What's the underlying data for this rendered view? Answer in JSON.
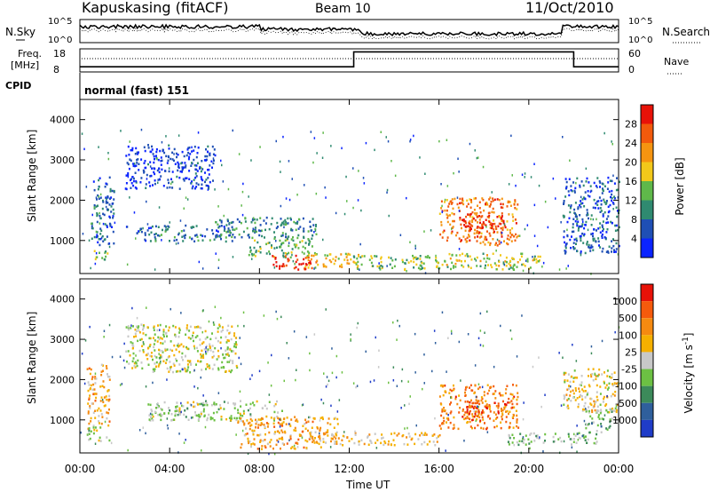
{
  "header": {
    "station": "Kapuskasing (fitACF)",
    "beam": "Beam 10",
    "date": "11/Oct/2010"
  },
  "noise_panel": {
    "left_label": "N.Sky",
    "right_label": "N.Search",
    "left_ticks": [
      "10^5",
      "10^0"
    ],
    "right_ticks": [
      "10^5",
      "10^0"
    ]
  },
  "freq_panel": {
    "left_label_1": "Freq.",
    "left_label_2": "[MHz]",
    "right_label": "Nave",
    "left_ticks": [
      "18",
      "8"
    ],
    "right_ticks": [
      "60",
      "0"
    ]
  },
  "cpid_panel": {
    "label": "CPID",
    "value": "normal (fast) 151"
  },
  "xaxis": {
    "title": "Time UT",
    "ticks": [
      "00:00",
      "04:00",
      "08:00",
      "12:00",
      "16:00",
      "20:00",
      "00:00"
    ]
  },
  "chart_data": [
    {
      "type": "heatmap",
      "name": "power",
      "ylabel": "Slant Range [km]",
      "yticks": [
        "1000",
        "2000",
        "3000",
        "4000"
      ],
      "ylim": [
        180,
        4500
      ],
      "xlim_hours": [
        0,
        24
      ],
      "colorbar": {
        "label": "Power [dB]",
        "ticks": [
          "4",
          "8",
          "12",
          "16",
          "20",
          "24",
          "28"
        ],
        "colors": [
          "#0b24ff",
          "#1f4fb5",
          "#2f8a70",
          "#5fb84a",
          "#f2c81a",
          "#f59410",
          "#f25a0c",
          "#e81208"
        ]
      },
      "regions": [
        {
          "t0": 0.5,
          "t1": 1.2,
          "r0": 500,
          "r1": 800,
          "v": 0.45
        },
        {
          "t0": 0.5,
          "t1": 1.5,
          "r0": 900,
          "r1": 2600,
          "v": 0.2
        },
        {
          "t0": 2.0,
          "t1": 6.0,
          "r0": 2300,
          "r1": 3400,
          "v": 0.12
        },
        {
          "t0": 2.5,
          "t1": 7.0,
          "r0": 1000,
          "r1": 1400,
          "v": 0.25
        },
        {
          "t0": 6.0,
          "t1": 10.5,
          "r0": 1100,
          "r1": 1600,
          "v": 0.3
        },
        {
          "t0": 7.5,
          "t1": 10.5,
          "r0": 600,
          "r1": 1100,
          "v": 0.4
        },
        {
          "t0": 8.5,
          "t1": 10.5,
          "r0": 300,
          "r1": 650,
          "v": 0.95
        },
        {
          "t0": 10.0,
          "t1": 12.5,
          "r0": 350,
          "r1": 700,
          "v": 0.6
        },
        {
          "t0": 12.0,
          "t1": 16.0,
          "r0": 300,
          "r1": 650,
          "v": 0.45
        },
        {
          "t0": 16.0,
          "t1": 19.5,
          "r0": 900,
          "r1": 2100,
          "v": 0.75
        },
        {
          "t0": 17.0,
          "t1": 19.0,
          "r0": 1200,
          "r1": 1700,
          "v": 0.92
        },
        {
          "t0": 16.0,
          "t1": 20.5,
          "r0": 300,
          "r1": 700,
          "v": 0.5
        },
        {
          "t0": 21.5,
          "t1": 24.0,
          "r0": 700,
          "r1": 2600,
          "v": 0.2
        }
      ]
    },
    {
      "type": "heatmap",
      "name": "velocity",
      "ylabel": "Slant Range [km]",
      "yticks": [
        "1000",
        "2000",
        "3000",
        "4000"
      ],
      "ylim": [
        180,
        4500
      ],
      "xlim_hours": [
        0,
        24
      ],
      "colorbar": {
        "label": "Velocity [m s^-1]",
        "ticks": [
          "1000",
          "500",
          "100",
          "25",
          "-25",
          "-100",
          "-500",
          "-1000"
        ],
        "colors": [
          "#1f3cc8",
          "#2f5f9c",
          "#3c8a5a",
          "#6cc043",
          "#c8c8c8",
          "#f5b000",
          "#f58a10",
          "#f55a0c",
          "#e81208"
        ]
      },
      "regions": [
        {
          "t0": 0.3,
          "t1": 1.3,
          "r0": 800,
          "r1": 2400,
          "v": 0.65
        },
        {
          "t0": 0.3,
          "t1": 1.3,
          "r0": 500,
          "r1": 850,
          "v": 0.45
        },
        {
          "t0": 2.0,
          "t1": 7.0,
          "r0": 2200,
          "r1": 3400,
          "v": 0.5
        },
        {
          "t0": 3.0,
          "t1": 9.0,
          "r0": 1000,
          "r1": 1500,
          "v": 0.45
        },
        {
          "t0": 7.0,
          "t1": 11.5,
          "r0": 300,
          "r1": 1100,
          "v": 0.65
        },
        {
          "t0": 10.0,
          "t1": 16.0,
          "r0": 400,
          "r1": 700,
          "v": 0.6
        },
        {
          "t0": 16.0,
          "t1": 19.5,
          "r0": 800,
          "r1": 1900,
          "v": 0.75
        },
        {
          "t0": 17.0,
          "t1": 19.0,
          "r0": 1000,
          "r1": 1500,
          "v": 0.85
        },
        {
          "t0": 19.0,
          "t1": 23.0,
          "r0": 400,
          "r1": 700,
          "v": 0.4
        },
        {
          "t0": 21.5,
          "t1": 24.0,
          "r0": 1200,
          "r1": 2300,
          "v": 0.55
        },
        {
          "t0": 22.5,
          "t1": 23.7,
          "r0": 700,
          "r1": 1300,
          "v": 0.35
        }
      ]
    }
  ]
}
